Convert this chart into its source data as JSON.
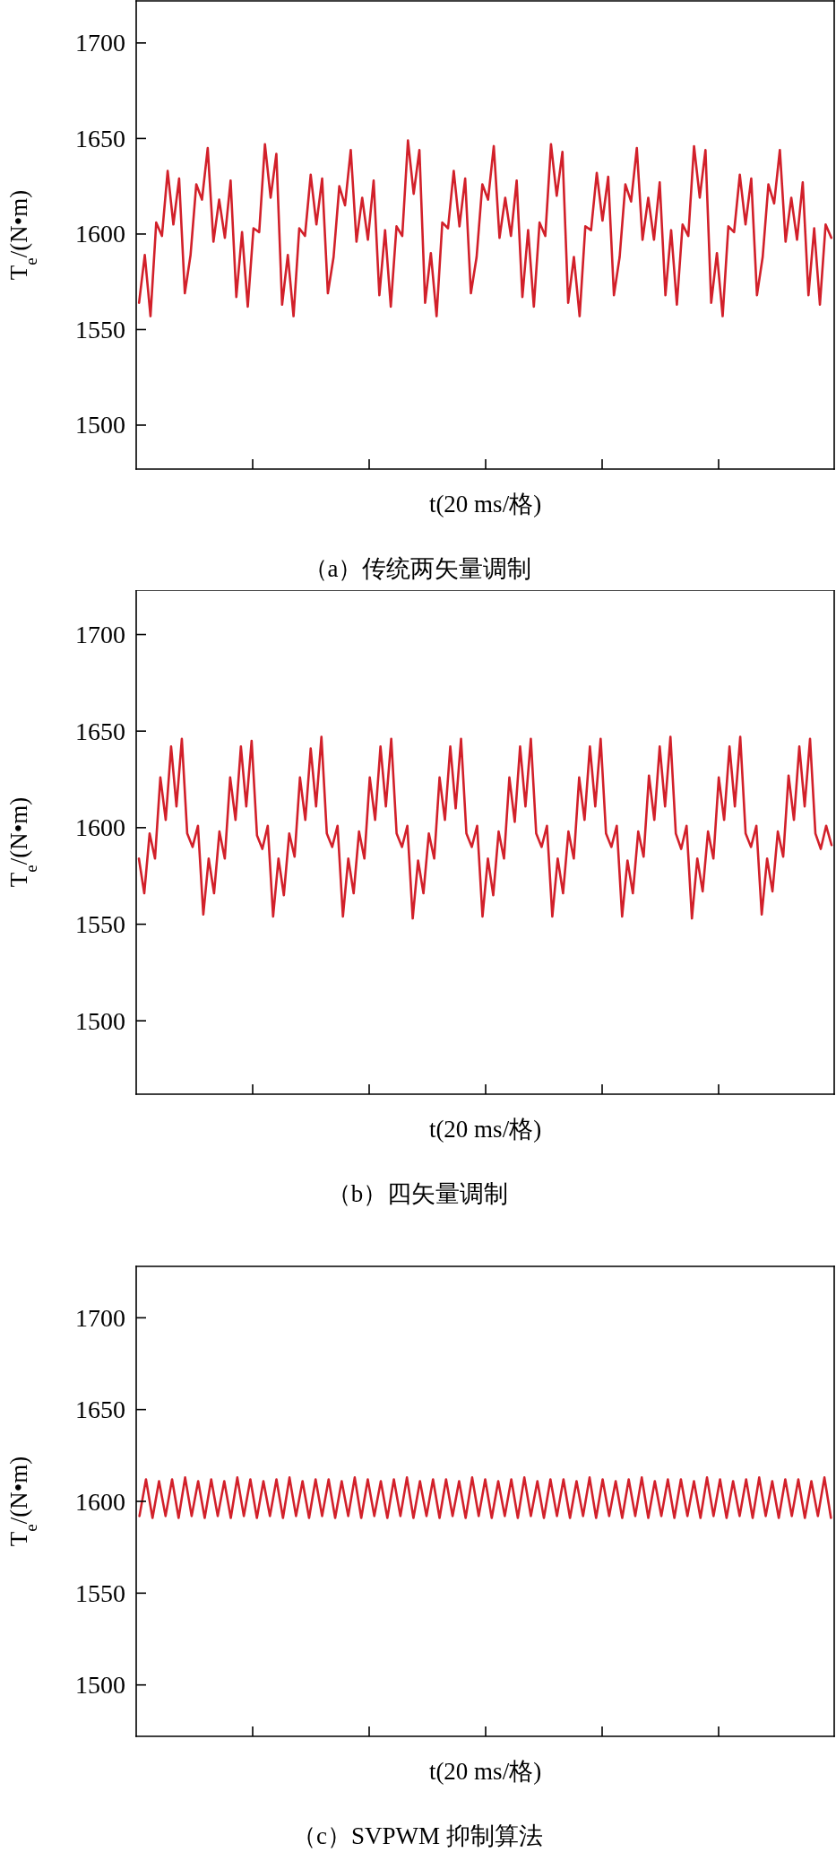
{
  "chart_data": [
    {
      "type": "line",
      "title": "（a）传统两矢量调制",
      "xlabel": "t(20 ms/格)",
      "ylabel": "T$_{e}$/(N•m)",
      "ylim": [
        1477,
        1722
      ],
      "yticks": [
        1500,
        1550,
        1600,
        1650,
        1700
      ],
      "tick_labels": "y",
      "categories": [
        null,
        null,
        null,
        null,
        null,
        null,
        null,
        null,
        null,
        null,
        null,
        null,
        null,
        null,
        null,
        null,
        null,
        null,
        null,
        null,
        null,
        null,
        null,
        null,
        null,
        null,
        null,
        null,
        null,
        null,
        null,
        null,
        null,
        null,
        null,
        null,
        null,
        null,
        null,
        null,
        null,
        null,
        null,
        null,
        null,
        null,
        null,
        null,
        null,
        null,
        null,
        null,
        null,
        null,
        null,
        null,
        null,
        null,
        null,
        null,
        null,
        null,
        null,
        null,
        null,
        null,
        null,
        null,
        null,
        null,
        null,
        null,
        null,
        null,
        null,
        null,
        null,
        null,
        null,
        null,
        null,
        null,
        null,
        null,
        null,
        null,
        null,
        null,
        null,
        null,
        null,
        null,
        null,
        null,
        null,
        null,
        null,
        null,
        null,
        null,
        null,
        null,
        null,
        null,
        null,
        null,
        null,
        null,
        null,
        null,
        null,
        null,
        null,
        null,
        null,
        null,
        null,
        null,
        null,
        null,
        null,
        null
      ],
      "series": [
        {
          "color": "#d2202a",
          "values": [
            1564,
            1589,
            1557,
            1606,
            1599,
            1633,
            1605,
            1629,
            1569,
            1589,
            1626,
            1618,
            1645,
            1596,
            1618,
            1598,
            1628,
            1567,
            1601,
            1562,
            1603,
            1601,
            1647,
            1619,
            1642,
            1563,
            1589,
            1557,
            1603,
            1599,
            1631,
            1605,
            1629,
            1569,
            1588,
            1625,
            1615,
            1644,
            1596,
            1619,
            1597,
            1628,
            1568,
            1602,
            1562,
            1604,
            1599,
            1649,
            1621,
            1644,
            1564,
            1590,
            1557,
            1606,
            1603,
            1633,
            1604,
            1629,
            1569,
            1588,
            1626,
            1618,
            1646,
            1598,
            1619,
            1599,
            1628,
            1567,
            1602,
            1562,
            1606,
            1599,
            1647,
            1620,
            1643,
            1564,
            1588,
            1557,
            1604,
            1602,
            1632,
            1607,
            1630,
            1568,
            1588,
            1626,
            1617,
            1645,
            1597,
            1619,
            1597,
            1627,
            1568,
            1602,
            1563,
            1605,
            1599,
            1646,
            1619,
            1644,
            1564,
            1590,
            1557,
            1604,
            1601,
            1631,
            1605,
            1629,
            1568,
            1588,
            1626,
            1616,
            1644,
            1596,
            1619,
            1597,
            1627,
            1568,
            1603,
            1563,
            1605,
            1598
          ]
        }
      ]
    },
    {
      "type": "line",
      "title": "（b）四矢量调制",
      "xlabel": "t(20 ms/格)",
      "ylabel": "T$_{e}$/(N•m)",
      "ylim": [
        1462,
        1723
      ],
      "yticks": [
        1500,
        1550,
        1600,
        1650,
        1700
      ],
      "tick_labels": "y",
      "categories": [
        null,
        null,
        null,
        null,
        null,
        null,
        null,
        null,
        null,
        null,
        null,
        null,
        null,
        null,
        null,
        null,
        null,
        null,
        null,
        null,
        null,
        null,
        null,
        null,
        null,
        null,
        null,
        null,
        null,
        null,
        null,
        null,
        null,
        null,
        null,
        null,
        null,
        null,
        null,
        null,
        null,
        null,
        null,
        null,
        null,
        null,
        null,
        null,
        null,
        null,
        null,
        null,
        null,
        null,
        null,
        null,
        null,
        null,
        null,
        null,
        null,
        null,
        null,
        null,
        null,
        null,
        null,
        null,
        null,
        null,
        null,
        null,
        null,
        null,
        null,
        null,
        null,
        null,
        null,
        null,
        null,
        null,
        null,
        null,
        null,
        null,
        null,
        null,
        null,
        null,
        null,
        null,
        null,
        null,
        null,
        null,
        null,
        null,
        null,
        null,
        null,
        null,
        null,
        null,
        null,
        null,
        null,
        null,
        null,
        null,
        null,
        null,
        null,
        null,
        null,
        null,
        null,
        null,
        null,
        null,
        null,
        null,
        null,
        null,
        null,
        null,
        null,
        null,
        null,
        null
      ],
      "series": [
        {
          "color": "#d2202a",
          "values": [
            1584,
            1566,
            1597,
            1584,
            1626,
            1604,
            1642,
            1611,
            1646,
            1597,
            1590,
            1601,
            1555,
            1584,
            1566,
            1598,
            1584,
            1626,
            1604,
            1642,
            1611,
            1645,
            1596,
            1589,
            1601,
            1554,
            1584,
            1565,
            1597,
            1585,
            1626,
            1604,
            1641,
            1611,
            1647,
            1597,
            1590,
            1601,
            1554,
            1584,
            1566,
            1598,
            1584,
            1626,
            1604,
            1642,
            1611,
            1646,
            1597,
            1590,
            1601,
            1553,
            1583,
            1566,
            1597,
            1584,
            1626,
            1604,
            1642,
            1610,
            1646,
            1597,
            1590,
            1601,
            1554,
            1584,
            1565,
            1598,
            1584,
            1626,
            1603,
            1642,
            1611,
            1646,
            1597,
            1590,
            1601,
            1554,
            1584,
            1566,
            1598,
            1584,
            1626,
            1604,
            1642,
            1611,
            1646,
            1597,
            1590,
            1601,
            1554,
            1583,
            1566,
            1598,
            1585,
            1627,
            1604,
            1642,
            1611,
            1647,
            1597,
            1589,
            1601,
            1553,
            1584,
            1567,
            1598,
            1584,
            1626,
            1604,
            1642,
            1611,
            1647,
            1597,
            1590,
            1601,
            1555,
            1584,
            1567,
            1598,
            1585,
            1627,
            1604,
            1642,
            1611,
            1646,
            1597,
            1589,
            1601,
            1591
          ]
        }
      ]
    },
    {
      "type": "line",
      "title": "（c）SVPWM 抑制算法",
      "xlabel": "t(20 ms/格)",
      "ylabel": "T$_{e}$/(N•m)",
      "ylim": [
        1472,
        1728
      ],
      "yticks": [
        1500,
        1550,
        1600,
        1650,
        1700
      ],
      "tick_labels": "y",
      "categories": [
        null,
        null,
        null,
        null,
        null,
        null,
        null,
        null,
        null,
        null,
        null,
        null,
        null,
        null,
        null,
        null,
        null,
        null,
        null,
        null,
        null,
        null,
        null,
        null,
        null,
        null,
        null,
        null,
        null,
        null,
        null,
        null,
        null,
        null,
        null,
        null,
        null,
        null,
        null,
        null,
        null,
        null,
        null,
        null,
        null,
        null,
        null,
        null,
        null,
        null,
        null,
        null,
        null,
        null,
        null,
        null,
        null,
        null,
        null,
        null,
        null,
        null,
        null,
        null,
        null,
        null,
        null,
        null,
        null,
        null,
        null,
        null,
        null,
        null,
        null,
        null,
        null,
        null,
        null,
        null,
        null,
        null,
        null,
        null,
        null,
        null,
        null,
        null,
        null,
        null,
        null,
        null,
        null,
        null,
        null,
        null,
        null,
        null,
        null,
        null,
        null,
        null,
        null,
        null,
        null,
        null,
        null
      ],
      "series": [
        {
          "color": "#d2202a",
          "values": [
            1592,
            1612,
            1591,
            1611,
            1592,
            1612,
            1591,
            1613,
            1592,
            1611,
            1591,
            1612,
            1592,
            1611,
            1591,
            1613,
            1592,
            1612,
            1591,
            1611,
            1592,
            1612,
            1591,
            1613,
            1592,
            1611,
            1591,
            1612,
            1592,
            1612,
            1591,
            1611,
            1592,
            1613,
            1591,
            1612,
            1592,
            1611,
            1591,
            1612,
            1592,
            1613,
            1591,
            1611,
            1592,
            1612,
            1591,
            1612,
            1592,
            1611,
            1591,
            1613,
            1592,
            1612,
            1591,
            1611,
            1592,
            1612,
            1591,
            1613,
            1592,
            1611,
            1591,
            1612,
            1592,
            1612,
            1591,
            1611,
            1592,
            1613,
            1591,
            1612,
            1592,
            1611,
            1591,
            1612,
            1592,
            1613,
            1591,
            1611,
            1592,
            1612,
            1591,
            1612,
            1592,
            1611,
            1591,
            1613,
            1592,
            1612,
            1591,
            1611,
            1592,
            1612,
            1591,
            1613,
            1592,
            1611,
            1591,
            1612,
            1592,
            1612,
            1591,
            1611,
            1592,
            1613,
            1591
          ]
        }
      ]
    }
  ]
}
